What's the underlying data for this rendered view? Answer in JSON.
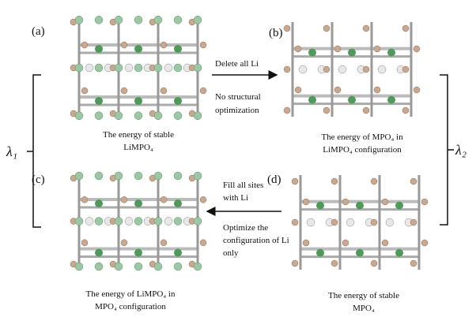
{
  "panels": [
    {
      "label": "(a)",
      "caption": [
        "The energy of stable",
        "LiMPO₄"
      ]
    },
    {
      "label": "(b)",
      "caption": [
        "The energy of MPO₄ in",
        "LiMPO₄  configuration"
      ]
    },
    {
      "label": "(c)",
      "caption": [
        "The energy of LiMPO₄ in",
        "MPO₄ configuration"
      ]
    },
    {
      "label": "(d)",
      "caption": [
        "The energy of stable",
        "MPO₄"
      ]
    }
  ],
  "arrows": [
    {
      "above": [
        "Delete all Li"
      ],
      "below": [
        "No structural",
        "optimization"
      ]
    },
    {
      "above": [
        "Fill all sites",
        "with Li"
      ],
      "below": [
        "Optimize the",
        "configuration of Li",
        "only"
      ]
    }
  ],
  "lambdas": [
    "λ₁",
    "λ₂"
  ]
}
